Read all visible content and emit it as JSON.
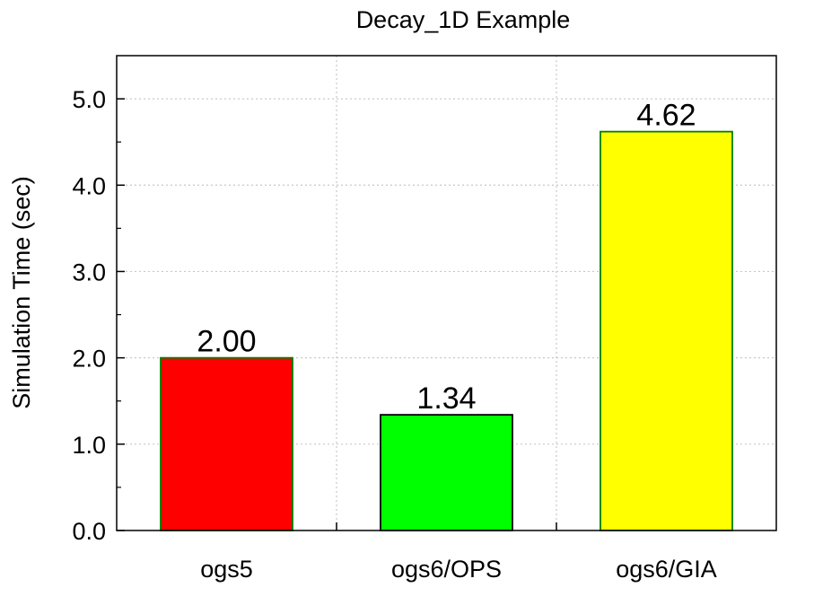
{
  "chart_data": {
    "type": "bar",
    "title": "Decay_1D Example",
    "xlabel": "",
    "ylabel": "Simulation Time (sec)",
    "categories": [
      "ogs5",
      "ogs6/OPS",
      "ogs6/GIA"
    ],
    "values": [
      2.0,
      1.34,
      4.62
    ],
    "data_labels": [
      "2.00",
      "1.34",
      "4.62"
    ],
    "bar_colors": [
      "#ff0000",
      "#00ff00",
      "#ffff00"
    ],
    "bar_edge_colors": [
      "#008000",
      "#000000",
      "#008000"
    ],
    "ylim": [
      0,
      5.5
    ],
    "yticks": [
      0,
      1,
      2,
      3,
      4,
      5
    ],
    "ytick_labels": [
      "0.0",
      "1.0",
      "2.0",
      "3.0",
      "4.0",
      "5.0"
    ],
    "grid": true,
    "grid_color": "#c8c8c8"
  }
}
